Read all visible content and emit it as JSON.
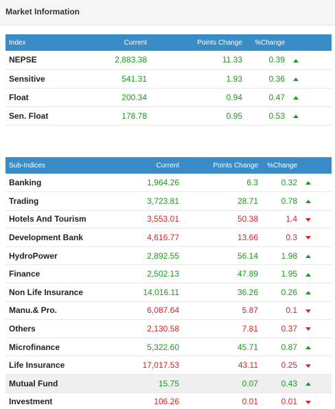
{
  "panel": {
    "title": "Market Information"
  },
  "indices": {
    "headers": {
      "name": "Index",
      "current": "Current",
      "points": "Points Change",
      "pct": "%Change"
    },
    "rows": [
      {
        "name": "NEPSE",
        "current": "2,883.38",
        "points": "11.33",
        "pct": "0.39",
        "direction": "up"
      },
      {
        "name": "Sensitive",
        "current": "541.31",
        "points": "1.93",
        "pct": "0.36",
        "direction": "up"
      },
      {
        "name": "Float",
        "current": "200.34",
        "points": "0.94",
        "pct": "0.47",
        "direction": "up"
      },
      {
        "name": "Sen. Float",
        "current": "178.78",
        "points": "0.95",
        "pct": "0.53",
        "direction": "up"
      }
    ]
  },
  "sub_indices": {
    "headers": {
      "name": "Sub-Indices",
      "current": "Current",
      "points": "Points Change",
      "pct": "%Change"
    },
    "rows": [
      {
        "name": "Banking",
        "current": "1,964.26",
        "points": "6.3",
        "pct": "0.32",
        "direction": "up"
      },
      {
        "name": "Trading",
        "current": "3,723.81",
        "points": "28.71",
        "pct": "0.78",
        "direction": "up"
      },
      {
        "name": "Hotels And Tourism",
        "current": "3,553.01",
        "points": "50.38",
        "pct": "1.4",
        "direction": "down"
      },
      {
        "name": "Development Bank",
        "current": "4,616.77",
        "points": "13.66",
        "pct": "0.3",
        "direction": "down"
      },
      {
        "name": "HydroPower",
        "current": "2,892.55",
        "points": "56.14",
        "pct": "1.98",
        "direction": "up"
      },
      {
        "name": "Finance",
        "current": "2,502.13",
        "points": "47.89",
        "pct": "1.95",
        "direction": "up"
      },
      {
        "name": "Non Life Insurance",
        "current": "14,016.11",
        "points": "36.26",
        "pct": "0.26",
        "direction": "up"
      },
      {
        "name": "Manu.& Pro.",
        "current": "6,087.64",
        "points": "5.87",
        "pct": "0.1",
        "direction": "down"
      },
      {
        "name": "Others",
        "current": "2,130.58",
        "points": "7.81",
        "pct": "0.37",
        "direction": "down"
      },
      {
        "name": "Microfinance",
        "current": "5,322.60",
        "points": "45.71",
        "pct": "0.87",
        "direction": "up"
      },
      {
        "name": "Life Insurance",
        "current": "17,017.53",
        "points": "43.11",
        "pct": "0.25",
        "direction": "down"
      },
      {
        "name": "Mutual Fund",
        "current": "15.75",
        "points": "0.07",
        "pct": "0.43",
        "direction": "up",
        "shaded": true
      },
      {
        "name": "Investment",
        "current": "106.26",
        "points": "0.01",
        "pct": "0.01",
        "direction": "down"
      }
    ]
  },
  "colors": {
    "header_bg": "#3a8cc6",
    "up": "#1a9a1a",
    "down": "#dd2222"
  }
}
